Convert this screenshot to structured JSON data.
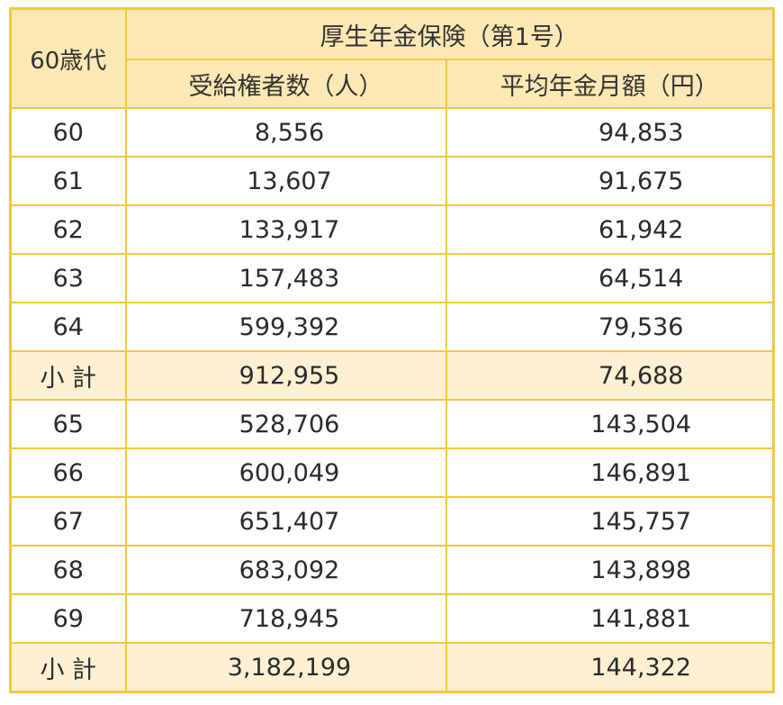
{
  "header": {
    "age_label": "60歳代",
    "group_label": "厚生年金保険（第1号）",
    "col_recipients": "受給権者数（人）",
    "col_avg_monthly": "平均年金月額（円）"
  },
  "rows": [
    {
      "age": "60",
      "recipients": "8,556",
      "avg": "94,853",
      "subtotal": false
    },
    {
      "age": "61",
      "recipients": "13,607",
      "avg": "91,675",
      "subtotal": false
    },
    {
      "age": "62",
      "recipients": "133,917",
      "avg": "61,942",
      "subtotal": false
    },
    {
      "age": "63",
      "recipients": "157,483",
      "avg": "64,514",
      "subtotal": false
    },
    {
      "age": "64",
      "recipients": "599,392",
      "avg": "79,536",
      "subtotal": false
    },
    {
      "age": "小 計",
      "recipients": "912,955",
      "avg": "74,688",
      "subtotal": true
    },
    {
      "age": "65",
      "recipients": "528,706",
      "avg": "143,504",
      "subtotal": false
    },
    {
      "age": "66",
      "recipients": "600,049",
      "avg": "146,891",
      "subtotal": false
    },
    {
      "age": "67",
      "recipients": "651,407",
      "avg": "145,757",
      "subtotal": false
    },
    {
      "age": "68",
      "recipients": "683,092",
      "avg": "143,898",
      "subtotal": false
    },
    {
      "age": "69",
      "recipients": "718,945",
      "avg": "141,881",
      "subtotal": false
    },
    {
      "age": "小 計",
      "recipients": "3,182,199",
      "avg": "144,322",
      "subtotal": true
    }
  ],
  "colors": {
    "border": "#f2c744",
    "header_bg": "#fce8b4",
    "subtotal_bg": "#fdf0d2"
  }
}
